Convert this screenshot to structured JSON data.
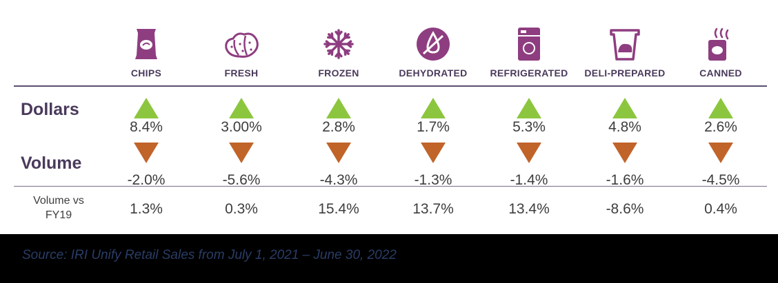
{
  "chart_data": {
    "type": "table",
    "categories": [
      "CHIPS",
      "FRESH",
      "FROZEN",
      "DEHYDRATED",
      "REFRIGERATED",
      "DELI-PREPARED",
      "CANNED"
    ],
    "icons": [
      "chips-bag-icon",
      "fresh-potatoes-icon",
      "snowflake-icon",
      "dehydrated-icon",
      "refrigerator-icon",
      "deli-container-icon",
      "canned-food-icon"
    ],
    "rows": [
      {
        "label": "Dollars",
        "direction": "up",
        "values": [
          "8.4%",
          "3.00%",
          "2.8%",
          "1.7%",
          "5.3%",
          "4.8%",
          "2.6%"
        ]
      },
      {
        "label": "Volume",
        "direction": "down",
        "values": [
          "-2.0%",
          "-5.6%",
          "-4.3%",
          "-1.3%",
          "-1.4%",
          "-1.6%",
          "-4.5%"
        ]
      },
      {
        "label_lines": [
          "Volume vs",
          "FY19"
        ],
        "values": [
          "1.3%",
          "0.3%",
          "15.4%",
          "13.7%",
          "13.4%",
          "-8.6%",
          "0.4%"
        ]
      }
    ]
  },
  "colors": {
    "icon_purple": "#8e3d80",
    "up_arrow": "#8cc63f",
    "down_arrow": "#c0642a",
    "header_text": "#4a3a5c"
  },
  "footer": {
    "source": "Source: IRI Unify Retail Sales from July 1, 2021 – June 30, 2022"
  }
}
